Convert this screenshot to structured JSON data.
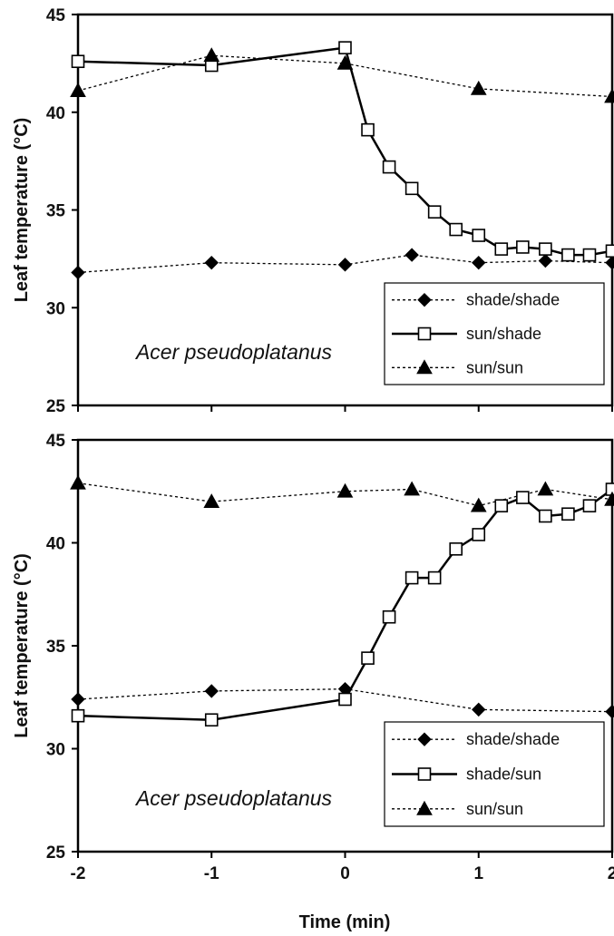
{
  "xlabel": "Time (min)",
  "chart_data": [
    {
      "type": "line",
      "ylabel": "Leaf temperature (°C)",
      "annotation": "Acer pseudoplatanus",
      "xlim": [
        -2,
        2
      ],
      "ylim": [
        25,
        45
      ],
      "xticks": [
        "-2",
        "-1",
        "0",
        "1",
        "2"
      ],
      "yticks": [
        "25",
        "30",
        "35",
        "40",
        "45"
      ],
      "legend_position": "bottom-right",
      "grid": false,
      "series": [
        {
          "name": "shade/shade",
          "style": "dotted",
          "marker": "diamond-filled",
          "color": "#000000",
          "x": [
            -2,
            -1,
            0,
            0.5,
            1,
            1.5,
            2
          ],
          "y": [
            31.8,
            32.3,
            32.2,
            32.7,
            32.3,
            32.4,
            32.3
          ]
        },
        {
          "name": "sun/shade",
          "style": "solid",
          "marker": "square-open",
          "color": "#000000",
          "x": [
            -2,
            -1,
            0,
            0.17,
            0.33,
            0.5,
            0.67,
            0.83,
            1,
            1.17,
            1.33,
            1.5,
            1.67,
            1.83,
            2
          ],
          "y": [
            42.6,
            42.4,
            43.3,
            39.1,
            37.2,
            36.1,
            34.9,
            34.0,
            33.7,
            33.0,
            33.1,
            33.0,
            32.7,
            32.7,
            32.9
          ]
        },
        {
          "name": "sun/sun",
          "style": "dotted",
          "marker": "triangle-filled",
          "color": "#000000",
          "x": [
            -2,
            -1,
            0,
            1,
            2
          ],
          "y": [
            41.1,
            42.9,
            42.5,
            41.2,
            40.8
          ]
        }
      ]
    },
    {
      "type": "line",
      "ylabel": "Leaf temperature (°C)",
      "annotation": "Acer pseudoplatanus",
      "xlim": [
        -2,
        2
      ],
      "ylim": [
        25,
        45
      ],
      "xticks": [
        "-2",
        "-1",
        "0",
        "1",
        "2"
      ],
      "yticks": [
        "25",
        "30",
        "35",
        "40",
        "45"
      ],
      "legend_position": "bottom-right",
      "grid": false,
      "series": [
        {
          "name": "shade/shade",
          "style": "dotted",
          "marker": "diamond-filled",
          "color": "#000000",
          "x": [
            -2,
            -1,
            0,
            1,
            2
          ],
          "y": [
            32.4,
            32.8,
            32.9,
            31.9,
            31.8
          ]
        },
        {
          "name": "shade/sun",
          "style": "solid",
          "marker": "square-open",
          "color": "#000000",
          "x": [
            -2,
            -1,
            0,
            0.17,
            0.33,
            0.5,
            0.67,
            0.83,
            1,
            1.17,
            1.33,
            1.5,
            1.67,
            1.83,
            2
          ],
          "y": [
            31.6,
            31.4,
            32.4,
            34.4,
            36.4,
            38.3,
            38.3,
            39.7,
            40.4,
            41.8,
            42.2,
            41.3,
            41.4,
            41.8,
            42.6
          ]
        },
        {
          "name": "sun/sun",
          "style": "dotted",
          "marker": "triangle-filled",
          "color": "#000000",
          "x": [
            -2,
            -1,
            0,
            0.5,
            1,
            1.5,
            2
          ],
          "y": [
            42.9,
            42.0,
            42.5,
            42.6,
            41.8,
            42.6,
            42.1
          ]
        }
      ]
    }
  ]
}
